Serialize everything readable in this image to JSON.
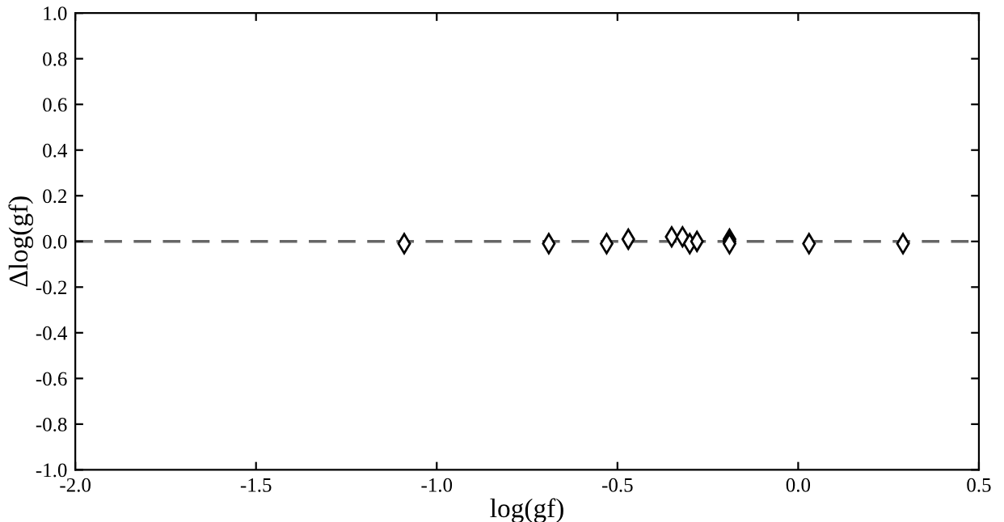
{
  "chart_data": {
    "type": "scatter",
    "xlabel": "log(gf)",
    "ylabel": "Δlog(gf)",
    "x": [
      -1.09,
      -0.69,
      -0.53,
      -0.47,
      -0.35,
      -0.32,
      -0.3,
      -0.28,
      -0.19,
      -0.19,
      -0.19,
      0.03,
      0.29
    ],
    "values": [
      -0.01,
      -0.01,
      -0.01,
      0.01,
      0.02,
      0.02,
      -0.01,
      0.0,
      0.01,
      0.0,
      -0.01,
      -0.01,
      -0.01
    ],
    "color": "#000000",
    "marker": "diamond",
    "xlim": [
      -2.0,
      0.5
    ],
    "xticks": [
      {
        "value": -2.0,
        "label": "-2.0"
      },
      -1.5,
      {
        "value": -1.0,
        "label": "-1.0"
      },
      -0.5,
      {
        "value": 0.0,
        "label": "0.0"
      },
      0.5
    ],
    "ylim": [
      -1.0,
      1.0
    ],
    "yticks": [
      {
        "value": -1.0,
        "label": "-1.0"
      },
      -0.8,
      -0.6,
      -0.4,
      -0.2,
      {
        "value": 0.0,
        "label": "0.0"
      },
      0.2,
      0.4,
      0.6,
      0.8,
      {
        "value": 1.0,
        "label": "1.0"
      }
    ],
    "ref_lines": [
      {
        "axis": "y",
        "value": 0.0,
        "color": "#666666",
        "line_style": "dashed"
      }
    ],
    "grid": false
  }
}
